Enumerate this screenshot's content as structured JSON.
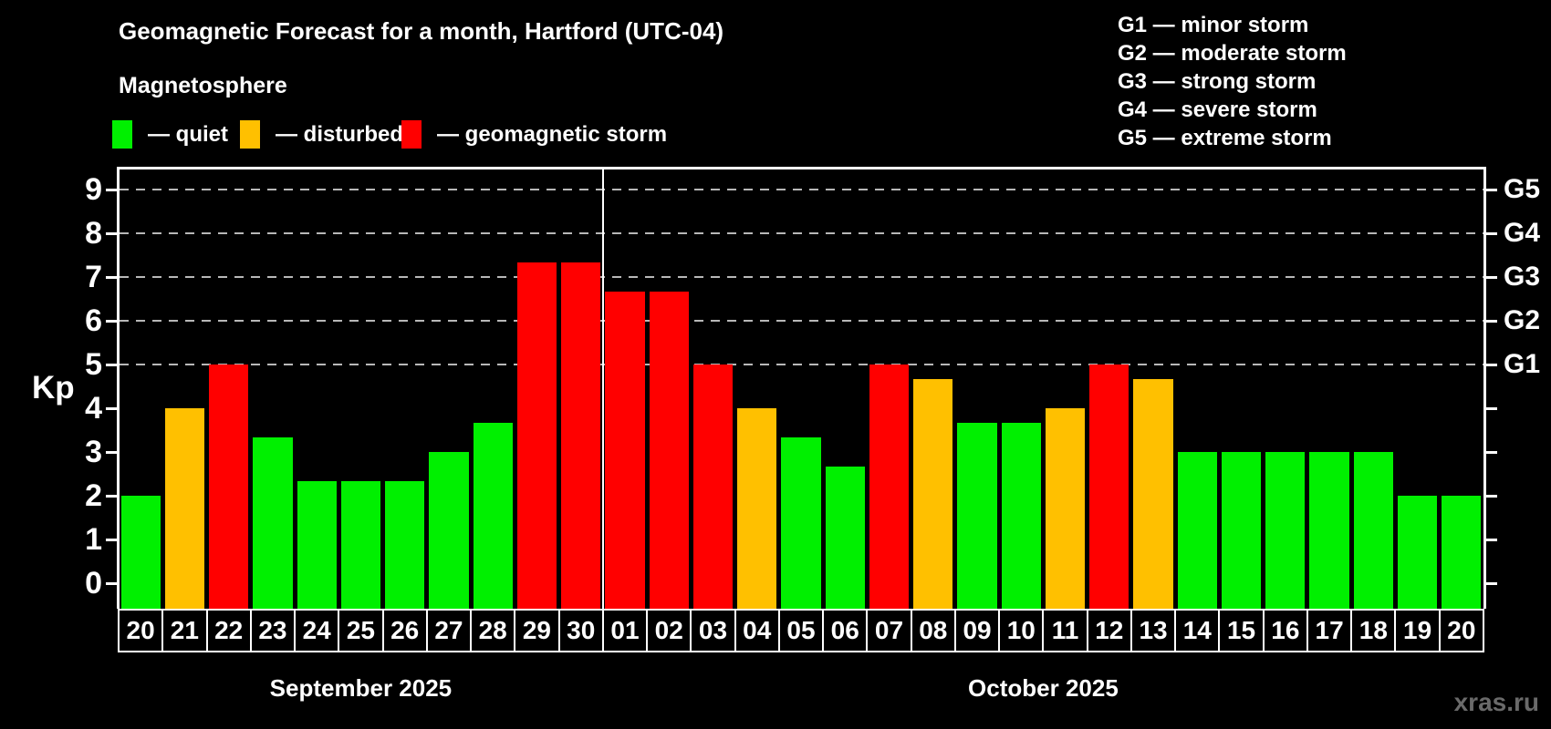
{
  "title": "Geomagnetic Forecast for a month, Hartford (UTC-04)",
  "legend": {
    "title": "Magnetosphere",
    "items": [
      {
        "label": "— quiet",
        "status": "quiet",
        "color": "#00f000"
      },
      {
        "label": "— disturbed",
        "status": "disturbed",
        "color": "#ffc000"
      },
      {
        "label": "— geomagnetic storm",
        "status": "storm",
        "color": "#ff0000"
      }
    ]
  },
  "storm_scale_legend": [
    "G1 — minor storm",
    "G2 — moderate storm",
    "G3 — strong storm",
    "G4 — severe storm",
    "G5 — extreme storm"
  ],
  "y_axis_label": "Kp",
  "watermark": "xras.ru",
  "chart_data": {
    "type": "bar",
    "title": "Geomagnetic Forecast for a month, Hartford (UTC-04)",
    "ylabel": "Kp",
    "ylim": [
      0,
      9.5
    ],
    "yticks": [
      0,
      1,
      2,
      3,
      4,
      5,
      6,
      7,
      8,
      9
    ],
    "gridlines_at_kp": [
      5,
      6,
      7,
      8,
      9
    ],
    "grid": "dashed horizontal at storm levels only",
    "legend_position": "top-left",
    "right_axis_labels": [
      {
        "kp": 5,
        "label": "G1"
      },
      {
        "kp": 6,
        "label": "G2"
      },
      {
        "kp": 7,
        "label": "G3"
      },
      {
        "kp": 8,
        "label": "G4"
      },
      {
        "kp": 9,
        "label": "G5"
      }
    ],
    "months": [
      {
        "label": "September 2025",
        "days": 11
      },
      {
        "label": "October 2025",
        "days": 20
      }
    ],
    "status_colors": {
      "quiet": "#00f000",
      "disturbed": "#ffc000",
      "storm": "#ff0000"
    },
    "bars": [
      {
        "date": "20",
        "month": "September 2025",
        "value": 2.0,
        "status": "quiet"
      },
      {
        "date": "21",
        "month": "September 2025",
        "value": 4.0,
        "status": "disturbed"
      },
      {
        "date": "22",
        "month": "September 2025",
        "value": 5.0,
        "status": "storm"
      },
      {
        "date": "23",
        "month": "September 2025",
        "value": 3.33,
        "status": "quiet"
      },
      {
        "date": "24",
        "month": "September 2025",
        "value": 2.33,
        "status": "quiet"
      },
      {
        "date": "25",
        "month": "September 2025",
        "value": 2.33,
        "status": "quiet"
      },
      {
        "date": "26",
        "month": "September 2025",
        "value": 2.33,
        "status": "quiet"
      },
      {
        "date": "27",
        "month": "September 2025",
        "value": 3.0,
        "status": "quiet"
      },
      {
        "date": "28",
        "month": "September 2025",
        "value": 3.67,
        "status": "quiet"
      },
      {
        "date": "29",
        "month": "September 2025",
        "value": 7.33,
        "status": "storm"
      },
      {
        "date": "30",
        "month": "September 2025",
        "value": 7.33,
        "status": "storm"
      },
      {
        "date": "01",
        "month": "October 2025",
        "value": 6.67,
        "status": "storm"
      },
      {
        "date": "02",
        "month": "October 2025",
        "value": 6.67,
        "status": "storm"
      },
      {
        "date": "03",
        "month": "October 2025",
        "value": 5.0,
        "status": "storm"
      },
      {
        "date": "04",
        "month": "October 2025",
        "value": 4.0,
        "status": "disturbed"
      },
      {
        "date": "05",
        "month": "October 2025",
        "value": 3.33,
        "status": "quiet"
      },
      {
        "date": "06",
        "month": "October 2025",
        "value": 2.67,
        "status": "quiet"
      },
      {
        "date": "07",
        "month": "October 2025",
        "value": 5.0,
        "status": "storm"
      },
      {
        "date": "08",
        "month": "October 2025",
        "value": 4.67,
        "status": "disturbed"
      },
      {
        "date": "09",
        "month": "October 2025",
        "value": 3.67,
        "status": "quiet"
      },
      {
        "date": "10",
        "month": "October 2025",
        "value": 3.67,
        "status": "quiet"
      },
      {
        "date": "11",
        "month": "October 2025",
        "value": 4.0,
        "status": "disturbed"
      },
      {
        "date": "12",
        "month": "October 2025",
        "value": 5.0,
        "status": "storm"
      },
      {
        "date": "13",
        "month": "October 2025",
        "value": 4.67,
        "status": "disturbed"
      },
      {
        "date": "14",
        "month": "October 2025",
        "value": 3.0,
        "status": "quiet"
      },
      {
        "date": "15",
        "month": "October 2025",
        "value": 3.0,
        "status": "quiet"
      },
      {
        "date": "16",
        "month": "October 2025",
        "value": 3.0,
        "status": "quiet"
      },
      {
        "date": "17",
        "month": "October 2025",
        "value": 3.0,
        "status": "quiet"
      },
      {
        "date": "18",
        "month": "October 2025",
        "value": 3.0,
        "status": "quiet"
      },
      {
        "date": "19",
        "month": "October 2025",
        "value": 2.0,
        "status": "quiet"
      },
      {
        "date": "20",
        "month": "October 2025",
        "value": 2.0,
        "status": "quiet"
      }
    ]
  }
}
